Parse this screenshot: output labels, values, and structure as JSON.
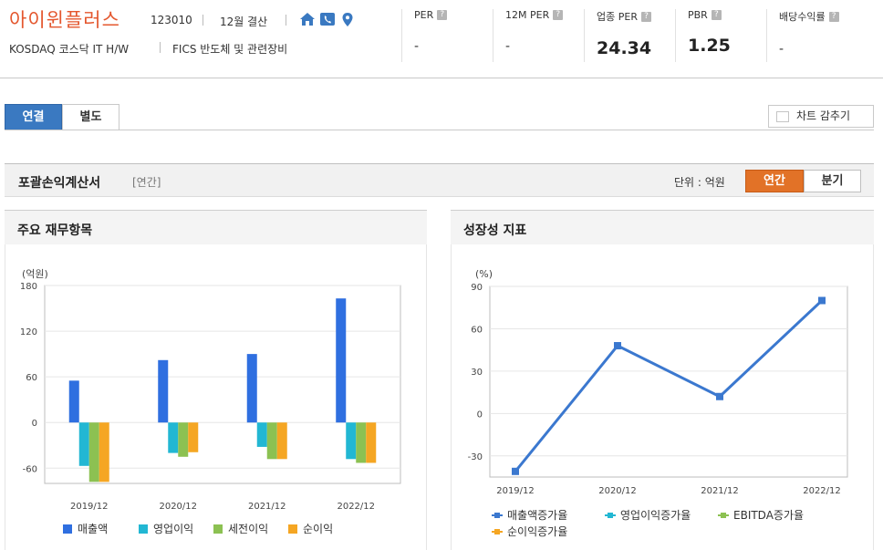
{
  "company": {
    "name": "아이윈플러스",
    "code": "123010",
    "fiscal": "12월 결산",
    "market": "KOSDAQ  코스닥 IT H/W",
    "fics": "FICS 반도체 및 관련장비"
  },
  "icons": [
    "home-icon",
    "phone-icon",
    "location-pin-icon"
  ],
  "metrics": [
    {
      "label": "PER",
      "value": "-"
    },
    {
      "label": "12M PER",
      "value": "-"
    },
    {
      "label": "업종 PER",
      "value": "24.34"
    },
    {
      "label": "PBR",
      "value": "1.25"
    },
    {
      "label": "배당수익률",
      "value": "-"
    }
  ],
  "help_glyph": "?",
  "tabs": {
    "consolidated": "연결",
    "separate": "별도",
    "active": "consolidated"
  },
  "hide_chart": "차트 감추기",
  "section": {
    "title": "포괄손익계산서",
    "sub": "[연간]",
    "unit": "단위 : 억원",
    "annual": "연간",
    "quarterly": "분기",
    "active": "annual"
  },
  "colors": {
    "accent_blue": "#3a79c1",
    "accent_orange": "#e27227",
    "name_red": "#e4572e"
  },
  "left_panel": {
    "title": "주요 재무항목"
  },
  "right_panel": {
    "title": "성장성 지표"
  },
  "chart_data": [
    {
      "type": "bar",
      "ylabel": "(억원)",
      "ylim": [
        -80,
        180
      ],
      "yticks": [
        -60,
        0,
        60,
        120,
        180
      ],
      "categories": [
        "2019/12",
        "2020/12",
        "2021/12",
        "2022/12"
      ],
      "grid": true,
      "legend": "bottom",
      "series": [
        {
          "name": "매출액",
          "color": "#2f6fe0",
          "values": [
            55,
            82,
            90,
            163
          ]
        },
        {
          "name": "영업이익",
          "color": "#22b7d3",
          "values": [
            -57,
            -40,
            -32,
            -48
          ]
        },
        {
          "name": "세전이익",
          "color": "#8cc152",
          "values": [
            -78,
            -45,
            -48,
            -53
          ]
        },
        {
          "name": "순이익",
          "color": "#f5a623",
          "values": [
            -78,
            -39,
            -48,
            -53
          ]
        }
      ]
    },
    {
      "type": "line",
      "ylabel": "(%)",
      "ylim": [
        -45,
        90
      ],
      "yticks": [
        -30,
        0,
        30,
        60,
        90
      ],
      "categories": [
        "2019/12",
        "2020/12",
        "2021/12",
        "2022/12"
      ],
      "grid": true,
      "legend": "bottom",
      "series": [
        {
          "name": "매출액증가율",
          "color": "#3b78cf",
          "values": [
            -41,
            48,
            12,
            80
          ]
        },
        {
          "name": "영업이익증가율",
          "color": "#22b7d3",
          "values": [
            null,
            null,
            null,
            null
          ]
        },
        {
          "name": "EBITDA증가율",
          "color": "#8cc152",
          "values": [
            null,
            null,
            null,
            null
          ]
        },
        {
          "name": "순이익증가율",
          "color": "#f5a623",
          "values": [
            null,
            null,
            null,
            null
          ]
        }
      ]
    }
  ]
}
